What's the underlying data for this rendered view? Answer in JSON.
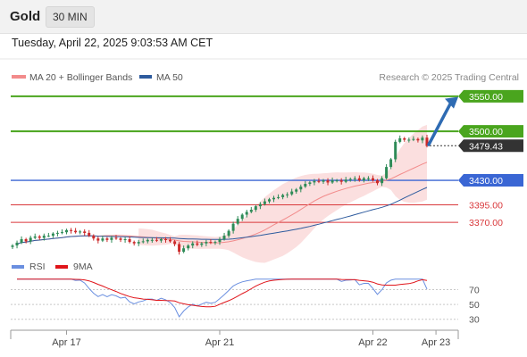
{
  "header": {
    "title": "Gold",
    "timeframe": "30 MIN"
  },
  "datetime": "Tuesday, April 22, 2025 9:03:53 AM CET",
  "credit": "Research © 2025 Trading Central",
  "colors": {
    "resistance": "#4aa51e",
    "pivot": "#3a66d4",
    "support": "#d9383b",
    "price_tag": "#333333",
    "bull_candle": "#2e8b57",
    "bear_candle": "#cc2a2a",
    "band_fill": "#fbdcdc",
    "ma20": "#f28b8b",
    "ma50": "#2e5b9e",
    "rsi": "#6a8fe0",
    "rsi_ma": "#e0141a",
    "arrow": "#2e6bb3"
  },
  "chart_data": [
    {
      "type": "candlestick",
      "legend": [
        {
          "name": "MA 20 + Bollinger Bands",
          "color": "#f28b8b"
        },
        {
          "name": "MA 50",
          "color": "#2e5b9e"
        }
      ],
      "ylim": [
        3346,
        3560
      ],
      "levels": [
        {
          "value": 3550.0,
          "label": "3550.00",
          "kind": "resistance"
        },
        {
          "value": 3500.0,
          "label": "3500.00",
          "kind": "resistance"
        },
        {
          "value": 3479.43,
          "label": "3479.43",
          "kind": "last_price"
        },
        {
          "value": 3430.0,
          "label": "3430.00",
          "kind": "pivot"
        },
        {
          "value": 3395.0,
          "label": "3395.00",
          "kind": "support"
        },
        {
          "value": 3370.0,
          "label": "3370.00",
          "kind": "support"
        }
      ],
      "x_ticks": [
        {
          "label": "Apr 17",
          "index": 12
        },
        {
          "label": "Apr 21",
          "index": 46
        },
        {
          "label": "Apr 22",
          "index": 80
        },
        {
          "label": "Apr 23",
          "index": 94
        }
      ],
      "close": [
        3337,
        3341,
        3346,
        3343,
        3348,
        3350,
        3348,
        3351,
        3351,
        3354,
        3355,
        3356,
        3359,
        3358,
        3356,
        3357,
        3355,
        3351,
        3347,
        3344,
        3347,
        3345,
        3348,
        3347,
        3345,
        3346,
        3342,
        3340,
        3342,
        3343,
        3345,
        3345,
        3344,
        3346,
        3345,
        3343,
        3339,
        3328,
        3333,
        3337,
        3340,
        3338,
        3340,
        3342,
        3341,
        3342,
        3346,
        3351,
        3358,
        3368,
        3375,
        3381,
        3385,
        3388,
        3393,
        3396,
        3400,
        3403,
        3405,
        3406,
        3409,
        3410,
        3414,
        3417,
        3421,
        3425,
        3427,
        3429,
        3428,
        3430,
        3427,
        3430,
        3430,
        3428,
        3431,
        3432,
        3433,
        3430,
        3433,
        3433,
        3430,
        3426,
        3433,
        3449,
        3460,
        3485,
        3490,
        3488,
        3488,
        3489,
        3487,
        3491,
        3479
      ]
    },
    {
      "type": "line",
      "title": "RSI",
      "legend": [
        {
          "name": "RSI",
          "color": "#6a8fe0"
        },
        {
          "name": "9MA",
          "color": "#e0141a"
        }
      ],
      "ylim": [
        20,
        85
      ],
      "y_ticks": [
        70,
        50,
        30
      ],
      "levels": [
        70,
        50,
        30
      ]
    }
  ]
}
